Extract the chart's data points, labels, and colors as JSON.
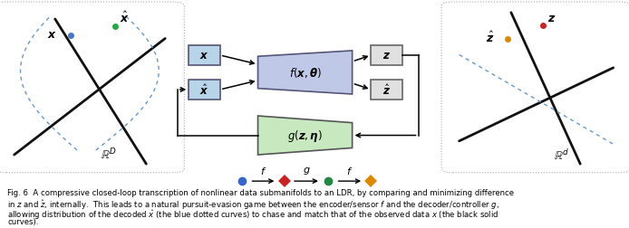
{
  "fig_width": 6.94,
  "fig_height": 2.53,
  "bg_color": "#ffffff",
  "caption_lines": [
    "Fig. 6  A compressive closed-loop transcription of nonlinear data submanifolds to an LDR, by comparing and minimizing difference",
    "in $z$ and $\\hat{z}$, internally.  This leads to a natural pursuit-evasion game between the encoder/sensor $f$ and the decoder/controller $g$,",
    "allowing distribution of the decoded $\\hat{x}$ (the blue dotted curves) to chase and match that of the observed data $x$ (the black solid",
    "curves)."
  ]
}
